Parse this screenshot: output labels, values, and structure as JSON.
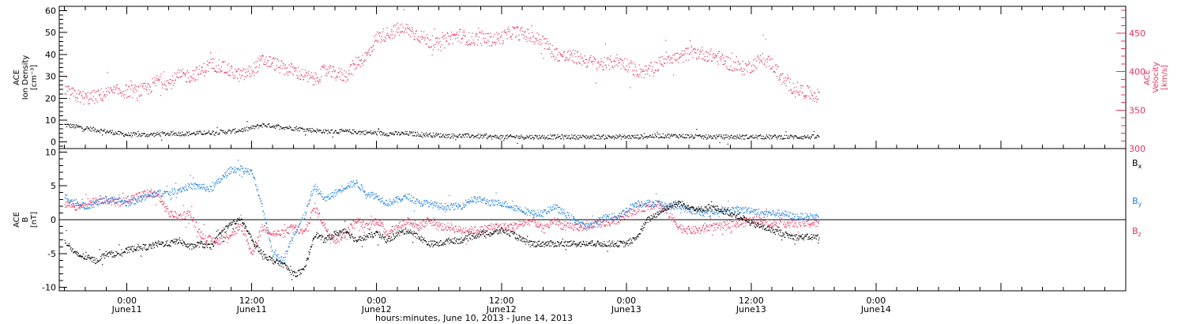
{
  "colors": {
    "black": "#000000",
    "pink": "#e8325e",
    "blue": "#1f7fe0"
  },
  "chart_data": [
    {
      "type": "scatter",
      "panel": "top",
      "ylabel_left": [
        "ACE",
        "Ion Density",
        "[cm⁻³]"
      ],
      "ylabel_right": [
        "ACE",
        "Velocity",
        "[km/s]"
      ],
      "x_range_hours": [
        -6.5,
        96
      ],
      "xtick_labels": [
        {
          "h": 0,
          "t": "0:00",
          "d": "June11"
        },
        {
          "h": 12,
          "t": "12:00",
          "d": "June11"
        },
        {
          "h": 24,
          "t": "0:00",
          "d": "June12"
        },
        {
          "h": 36,
          "t": "12:00",
          "d": "June12"
        },
        {
          "h": 48,
          "t": "0:00",
          "d": "June13"
        },
        {
          "h": 60,
          "t": "12:00",
          "d": "June13"
        },
        {
          "h": 72,
          "t": "0:00",
          "d": "June14"
        }
      ],
      "ylim_left": [
        -3,
        62
      ],
      "yticks_left": [
        0,
        10,
        20,
        30,
        40,
        50,
        60
      ],
      "ylim_right": [
        300,
        485
      ],
      "yticks_right": [
        300,
        350,
        400,
        450
      ],
      "ytick_labels_right": [
        "300",
        "350",
        "400",
        "450"
      ],
      "series": [
        {
          "axis": "left",
          "color": "#000000",
          "x": [
            -6,
            -4,
            -2,
            0,
            2,
            4,
            6,
            8,
            10,
            11.5,
            13,
            15,
            17,
            19,
            21,
            23,
            25,
            27,
            29,
            31,
            33,
            35,
            37,
            39,
            41,
            43,
            45,
            47,
            49,
            51,
            53,
            55,
            57,
            59,
            61,
            63,
            65,
            66.5
          ],
          "y": [
            8,
            6.5,
            5,
            3.5,
            3.5,
            4,
            4,
            4.5,
            5,
            6,
            8,
            7,
            6,
            5,
            5,
            4.5,
            4,
            4,
            3.5,
            3,
            3,
            2.5,
            2.5,
            2.5,
            2.5,
            2.5,
            2.5,
            2.5,
            2.5,
            3,
            3,
            2.5,
            2.5,
            2.5,
            2.5,
            2.5,
            2.5,
            2.5
          ]
        },
        {
          "axis": "right",
          "color": "#e8325e",
          "x": [
            -6,
            -5,
            -4,
            -3,
            -2,
            -1,
            0,
            1,
            2,
            3,
            4,
            5,
            6,
            7,
            8,
            9,
            10,
            11,
            12,
            13,
            14,
            15,
            16,
            17,
            18,
            19,
            20,
            21,
            22,
            23,
            24,
            25,
            26,
            27,
            28,
            29,
            30,
            31,
            32,
            33,
            34,
            35,
            36,
            37,
            38,
            39,
            40,
            41,
            42,
            43,
            44,
            45,
            46,
            47,
            48,
            49,
            50,
            51,
            52,
            53,
            54,
            55,
            56,
            57,
            58,
            59,
            60,
            61,
            62,
            63,
            64,
            65,
            66.5
          ],
          "y": [
            375,
            370,
            366,
            368,
            372,
            375,
            375,
            375,
            378,
            390,
            385,
            395,
            395,
            400,
            410,
            408,
            400,
            395,
            402,
            415,
            412,
            405,
            402,
            395,
            390,
            402,
            398,
            395,
            412,
            420,
            445,
            450,
            455,
            455,
            448,
            440,
            435,
            445,
            448,
            442,
            445,
            442,
            445,
            452,
            450,
            445,
            440,
            425,
            420,
            420,
            415,
            412,
            410,
            415,
            410,
            402,
            400,
            410,
            420,
            418,
            425,
            425,
            422,
            418,
            410,
            405,
            408,
            418,
            410,
            390,
            380,
            375,
            368
          ]
        }
      ]
    },
    {
      "type": "scatter",
      "panel": "bottom",
      "ylabel_left": [
        "ACE",
        "B",
        "[nT]"
      ],
      "x_range_hours": [
        -6.5,
        96
      ],
      "xlabel": "hours:minutes, June 10, 2013 - June 14, 2013",
      "ylim": [
        -10.5,
        10.5
      ],
      "yticks": [
        -10,
        -5,
        0,
        5,
        10
      ],
      "legend": [
        "Bx",
        "By",
        "Bz"
      ],
      "series": [
        {
          "name": "Bx",
          "color": "#000000",
          "x": [
            -6,
            -5,
            -4,
            -3,
            -2,
            -1,
            0,
            1,
            2,
            3,
            4,
            5,
            6,
            7,
            8,
            9,
            10,
            11,
            12,
            13,
            14,
            15,
            16,
            17,
            18,
            19,
            20,
            21,
            22,
            23,
            24,
            25,
            26,
            27,
            28,
            29,
            30,
            31,
            32,
            33,
            34,
            35,
            36,
            37,
            38,
            39,
            40,
            41,
            42,
            43,
            44,
            45,
            46,
            47,
            48,
            49,
            50,
            51,
            52,
            53,
            54,
            55,
            56,
            57,
            58,
            59,
            60,
            61,
            62,
            63,
            64,
            65,
            66.5
          ],
          "y": [
            -3,
            -5,
            -5.5,
            -6,
            -5,
            -5,
            -4.5,
            -4,
            -4,
            -3.5,
            -3.5,
            -3,
            -4,
            -3.5,
            -4,
            -2,
            -0.5,
            0,
            -3,
            -5,
            -6,
            -6.5,
            -8,
            -7.5,
            -2,
            -3,
            -2,
            -1.5,
            -3,
            -2.5,
            -2,
            -3,
            -2,
            -1.5,
            -2.5,
            -3.5,
            -3.5,
            -3,
            -3,
            -2.5,
            -2,
            -2,
            -1.5,
            -2,
            -3,
            -3.5,
            -3.5,
            -3.5,
            -3.5,
            -3.5,
            -3.5,
            -3.5,
            -3.5,
            -3.5,
            -3.5,
            -2.5,
            0,
            1,
            2,
            2.5,
            2,
            1.5,
            2,
            1.5,
            1,
            0.5,
            -0.5,
            -1,
            -1.5,
            -2,
            -2.5,
            -2.5,
            -2.5
          ]
        },
        {
          "name": "By",
          "color": "#1f7fe0",
          "x": [
            -6,
            -5,
            -4,
            -3,
            -2,
            -1,
            0,
            1,
            2,
            3,
            4,
            5,
            6,
            7,
            8,
            9,
            10,
            11,
            12,
            13,
            14,
            15,
            16,
            17,
            18,
            19,
            20,
            21,
            22,
            23,
            24,
            25,
            26,
            27,
            28,
            29,
            30,
            31,
            32,
            33,
            34,
            35,
            36,
            37,
            38,
            39,
            40,
            41,
            42,
            43,
            44,
            45,
            46,
            47,
            48,
            49,
            50,
            51,
            52,
            53,
            54,
            55,
            56,
            57,
            58,
            59,
            60,
            61,
            62,
            63,
            64,
            65,
            66.5
          ],
          "y": [
            3.5,
            2.5,
            2,
            2.5,
            3,
            3,
            2.5,
            3,
            3.5,
            4,
            4,
            4.5,
            5,
            5,
            4.5,
            6,
            7.5,
            7.5,
            7,
            2,
            -5,
            -6,
            -2,
            0.5,
            5,
            3,
            4,
            5,
            5.5,
            4,
            3.5,
            2.5,
            3,
            3.5,
            2.5,
            2.5,
            2,
            2,
            2,
            3,
            3,
            2.5,
            2.5,
            2,
            1.5,
            1,
            1,
            2,
            1,
            0,
            -1,
            -0.5,
            0.5,
            0.5,
            1.5,
            2.5,
            2.5,
            2.5,
            2,
            2,
            1.5,
            1,
            1,
            1.5,
            1.5,
            1.5,
            1.5,
            1,
            1,
            1,
            0.5,
            0.5,
            0.5
          ]
        },
        {
          "name": "Bz",
          "color": "#e8325e",
          "x": [
            -6,
            -5,
            -4,
            -3,
            -2,
            -1,
            0,
            1,
            2,
            3,
            4,
            5,
            6,
            7,
            8,
            9,
            10,
            11,
            12,
            13,
            14,
            15,
            16,
            17,
            18,
            19,
            20,
            21,
            22,
            23,
            24,
            25,
            26,
            27,
            28,
            29,
            30,
            31,
            32,
            33,
            34,
            35,
            36,
            37,
            38,
            39,
            40,
            41,
            42,
            43,
            44,
            45,
            46,
            47,
            48,
            49,
            50,
            51,
            52,
            53,
            54,
            55,
            56,
            57,
            58,
            59,
            60,
            61,
            62,
            63,
            64,
            65,
            66.5
          ],
          "y": [
            2.5,
            2,
            2.5,
            3,
            3,
            2.5,
            3,
            3.5,
            4,
            3.5,
            1,
            0.5,
            1,
            -2,
            -3,
            -3,
            -2,
            -1,
            -5,
            -1,
            -2,
            -2,
            -1,
            -2,
            2,
            -1,
            -3,
            -2,
            0,
            -1,
            0,
            -2,
            -1,
            0,
            -1,
            0,
            -1,
            -1,
            -1.5,
            -1.5,
            -1.5,
            -1,
            -1,
            -1,
            -0.5,
            0,
            -1.5,
            0,
            -1,
            -1,
            -1,
            -0.5,
            -0.5,
            0,
            1,
            1.5,
            2,
            2.5,
            1,
            -1,
            -1.5,
            -1.5,
            -1,
            -1,
            -0.5,
            -0.5,
            0,
            0,
            -0.5,
            -0.5,
            -0.5,
            -0.5,
            -0.5
          ]
        }
      ]
    }
  ]
}
